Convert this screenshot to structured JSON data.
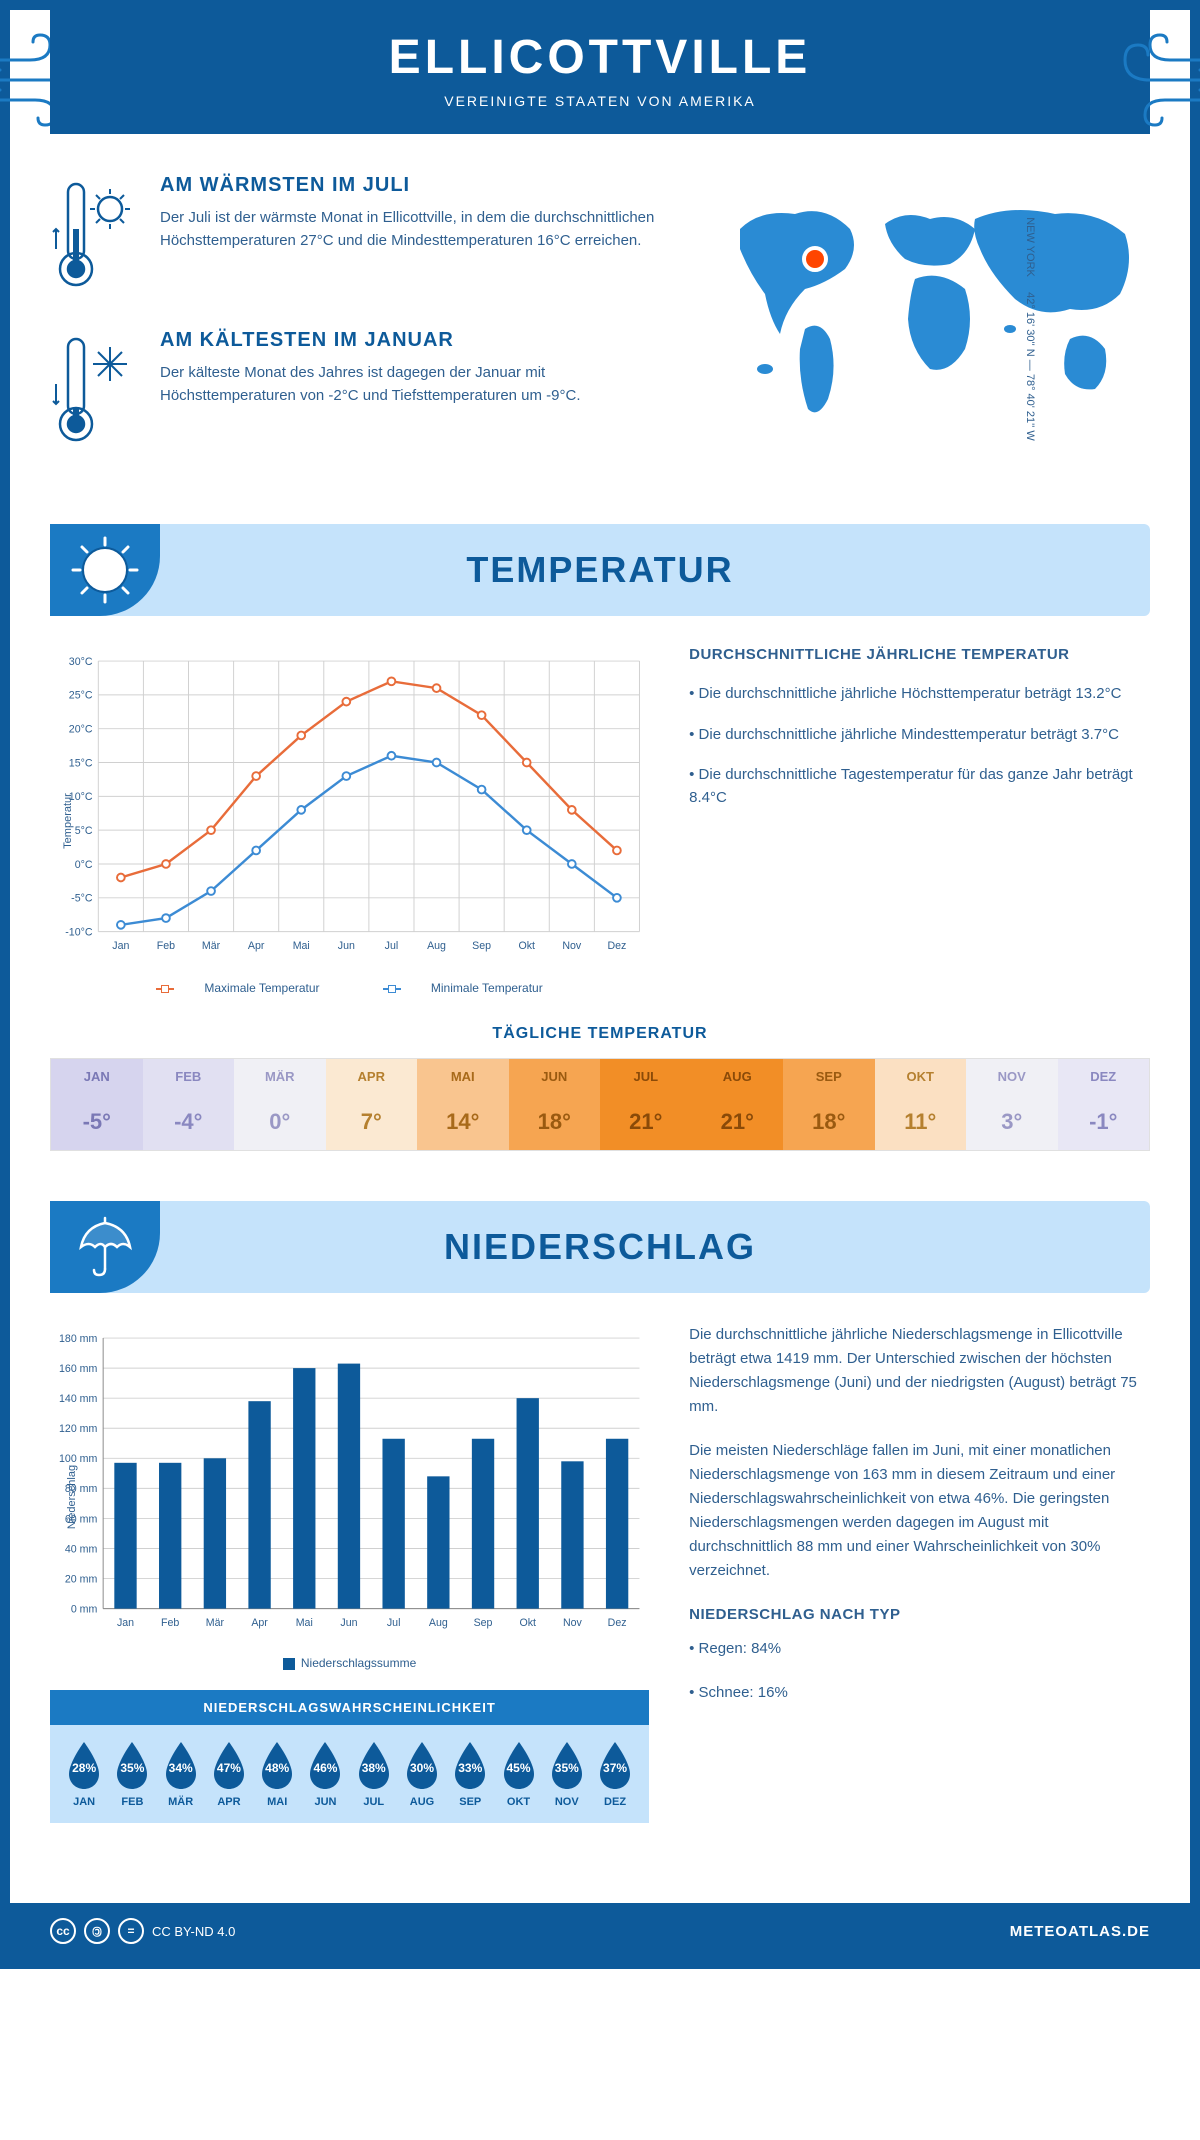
{
  "header": {
    "title": "ELLICOTTVILLE",
    "subtitle": "VEREINIGTE STAATEN VON AMERIKA"
  },
  "coords": {
    "lat": "42° 16' 30'' N",
    "lon": "78° 40' 21'' W",
    "region": "NEW YORK"
  },
  "warmest": {
    "heading": "AM WÄRMSTEN IM JULI",
    "text": "Der Juli ist der wärmste Monat in Ellicottville, in dem die durchschnittlichen Höchsttemperaturen 27°C und die Mindesttemperaturen 16°C erreichen."
  },
  "coldest": {
    "heading": "AM KÄLTESTEN IM JANUAR",
    "text": "Der kälteste Monat des Jahres ist dagegen der Januar mit Höchsttemperaturen von -2°C und Tiefsttemperaturen um -9°C."
  },
  "sections": {
    "temperature": "TEMPERATUR",
    "precipitation": "NIEDERSCHLAG"
  },
  "temp_chart": {
    "type": "line",
    "months": [
      "Jan",
      "Feb",
      "Mär",
      "Apr",
      "Mai",
      "Jun",
      "Jul",
      "Aug",
      "Sep",
      "Okt",
      "Nov",
      "Dez"
    ],
    "max_temp": [
      -2,
      0,
      5,
      13,
      19,
      24,
      27,
      26,
      22,
      15,
      8,
      2
    ],
    "min_temp": [
      -9,
      -8,
      -4,
      2,
      8,
      13,
      16,
      15,
      11,
      5,
      0,
      -5
    ],
    "max_color": "#e86c3a",
    "min_color": "#3c8bd4",
    "ylabel": "Temperatur",
    "ylim": [
      -10,
      30
    ],
    "ytick_step": 5,
    "grid_color": "#d0d0d0",
    "legend_max": "Maximale Temperatur",
    "legend_min": "Minimale Temperatur"
  },
  "temp_notes": {
    "heading": "DURCHSCHNITTLICHE JÄHRLICHE TEMPERATUR",
    "lines": [
      "• Die durchschnittliche jährliche Höchsttemperatur beträgt 13.2°C",
      "• Die durchschnittliche jährliche Mindesttemperatur beträgt 3.7°C",
      "• Die durchschnittliche Tagestemperatur für das ganze Jahr beträgt 8.4°C"
    ]
  },
  "daily_temp": {
    "title": "TÄGLICHE TEMPERATUR",
    "months": [
      "JAN",
      "FEB",
      "MÄR",
      "APR",
      "MAI",
      "JUN",
      "JUL",
      "AUG",
      "SEP",
      "OKT",
      "NOV",
      "DEZ"
    ],
    "values": [
      "-5°",
      "-4°",
      "0°",
      "7°",
      "14°",
      "18°",
      "21°",
      "21°",
      "18°",
      "11°",
      "3°",
      "-1°"
    ],
    "bg_colors": [
      "#d6d4ee",
      "#e1e0f2",
      "#f0f0f5",
      "#fbe9d2",
      "#f9c58f",
      "#f6a551",
      "#f28e26",
      "#f28e26",
      "#f6a551",
      "#fbe0c2",
      "#f0f0f5",
      "#e8e7f5"
    ],
    "text_colors": [
      "#7a78b5",
      "#8a88c0",
      "#9a98c5",
      "#b5802f",
      "#a86a1a",
      "#9a5a10",
      "#8a4a08",
      "#8a4a08",
      "#9a5a10",
      "#b5802f",
      "#9a98c5",
      "#8a88c0"
    ]
  },
  "precip_chart": {
    "type": "bar",
    "months": [
      "Jan",
      "Feb",
      "Mär",
      "Apr",
      "Mai",
      "Jun",
      "Jul",
      "Aug",
      "Sep",
      "Okt",
      "Nov",
      "Dez"
    ],
    "values": [
      97,
      97,
      100,
      138,
      160,
      163,
      113,
      88,
      113,
      140,
      98,
      113
    ],
    "ylabel": "Niederschlag",
    "ylim": [
      0,
      180
    ],
    "ytick_step": 20,
    "bar_color": "#0d5a9a",
    "grid_color": "#d0d0d0",
    "legend": "Niederschlagssumme"
  },
  "precip_text": {
    "p1": "Die durchschnittliche jährliche Niederschlagsmenge in Ellicottville beträgt etwa 1419 mm. Der Unterschied zwischen der höchsten Niederschlagsmenge (Juni) und der niedrigsten (August) beträgt 75 mm.",
    "p2": "Die meisten Niederschläge fallen im Juni, mit einer monatlichen Niederschlagsmenge von 163 mm in diesem Zeitraum und einer Niederschlagswahrscheinlichkeit von etwa 46%. Die geringsten Niederschlagsmengen werden dagegen im August mit durchschnittlich 88 mm und einer Wahrscheinlichkeit von 30% verzeichnet.",
    "type_heading": "NIEDERSCHLAG NACH TYP",
    "type_lines": [
      "• Regen: 84%",
      "• Schnee: 16%"
    ]
  },
  "prob": {
    "title": "NIEDERSCHLAGSWAHRSCHEINLICHKEIT",
    "months": [
      "JAN",
      "FEB",
      "MÄR",
      "APR",
      "MAI",
      "JUN",
      "JUL",
      "AUG",
      "SEP",
      "OKT",
      "NOV",
      "DEZ"
    ],
    "values": [
      "28%",
      "35%",
      "34%",
      "47%",
      "48%",
      "46%",
      "38%",
      "30%",
      "33%",
      "45%",
      "35%",
      "37%"
    ],
    "drop_color": "#0d5a9a"
  },
  "footer": {
    "license": "CC BY-ND 4.0",
    "site": "METEOATLAS.DE"
  },
  "colors": {
    "primary": "#0d5a9a",
    "light": "#c5e3fb",
    "mid": "#1b7ac3",
    "text": "#2f5f8f"
  }
}
